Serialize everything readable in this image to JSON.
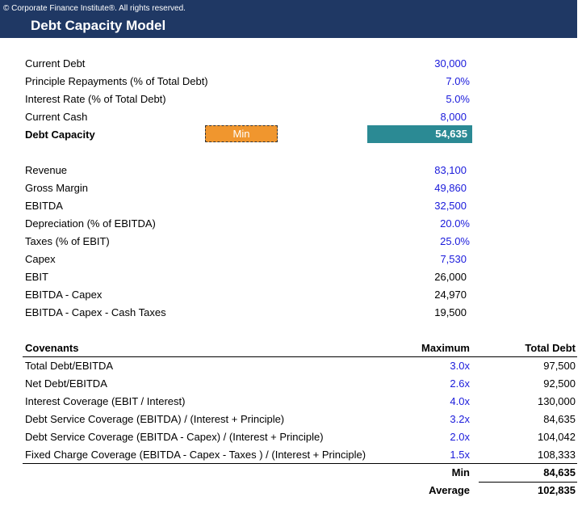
{
  "header": {
    "copyright": "© Corporate Finance Institute®. All rights reserved.",
    "title": "Debt Capacity Model"
  },
  "inputs": [
    {
      "label": "Current Debt",
      "value": "30,000"
    },
    {
      "label": "Principle Repayments (% of Total Debt)",
      "value": "7.0%"
    },
    {
      "label": "Interest Rate (% of Total Debt)",
      "value": "5.0%"
    },
    {
      "label": "Current Cash",
      "value": "8,000"
    }
  ],
  "debt_capacity": {
    "label": "Debt Capacity",
    "method_label": "Min",
    "value": "54,635"
  },
  "financials": [
    {
      "label": "Revenue",
      "value": "83,100"
    },
    {
      "label": "Gross Margin",
      "value": "49,860"
    },
    {
      "label": "EBITDA",
      "value": "32,500"
    },
    {
      "label": "Depreciation (% of EBITDA)",
      "value": "20.0%"
    },
    {
      "label": "Taxes (% of EBIT)",
      "value": "25.0%"
    },
    {
      "label": "Capex",
      "value": "7,530"
    },
    {
      "label": "EBIT",
      "value": "26,000"
    },
    {
      "label": "EBITDA - Capex",
      "value": "24,970"
    },
    {
      "label": "EBITDA - Capex - Cash Taxes",
      "value": "19,500"
    }
  ],
  "covenants": {
    "header": {
      "name": "Covenants",
      "maximum": "Maximum",
      "total_debt": "Total Debt"
    },
    "rows": [
      {
        "name": "Total Debt/EBITDA",
        "maximum": "3.0x",
        "total_debt": "97,500"
      },
      {
        "name": "Net Debt/EBITDA",
        "maximum": "2.6x",
        "total_debt": "92,500"
      },
      {
        "name": "Interest Coverage (EBIT / Interest)",
        "maximum": "4.0x",
        "total_debt": "130,000"
      },
      {
        "name": "Debt Service Coverage (EBITDA) / (Interest + Principle)",
        "maximum": "3.2x",
        "total_debt": "84,635"
      },
      {
        "name": "Debt Service Coverage (EBITDA - Capex) / (Interest + Principle)",
        "maximum": "2.0x",
        "total_debt": "104,042"
      },
      {
        "name": "Fixed Charge Coverage (EBITDA - Capex - Taxes ) / (Interest + Principle)",
        "maximum": "1.5x",
        "total_debt": "108,333"
      }
    ],
    "summary": [
      {
        "label": "Min",
        "value": "84,635"
      },
      {
        "label": "Average",
        "value": "102,835"
      }
    ]
  },
  "colors": {
    "header_bg": "#1f3864",
    "input_blue": "#1a1adb",
    "min_orange": "#f0962e",
    "capacity_teal": "#2b8a94"
  }
}
